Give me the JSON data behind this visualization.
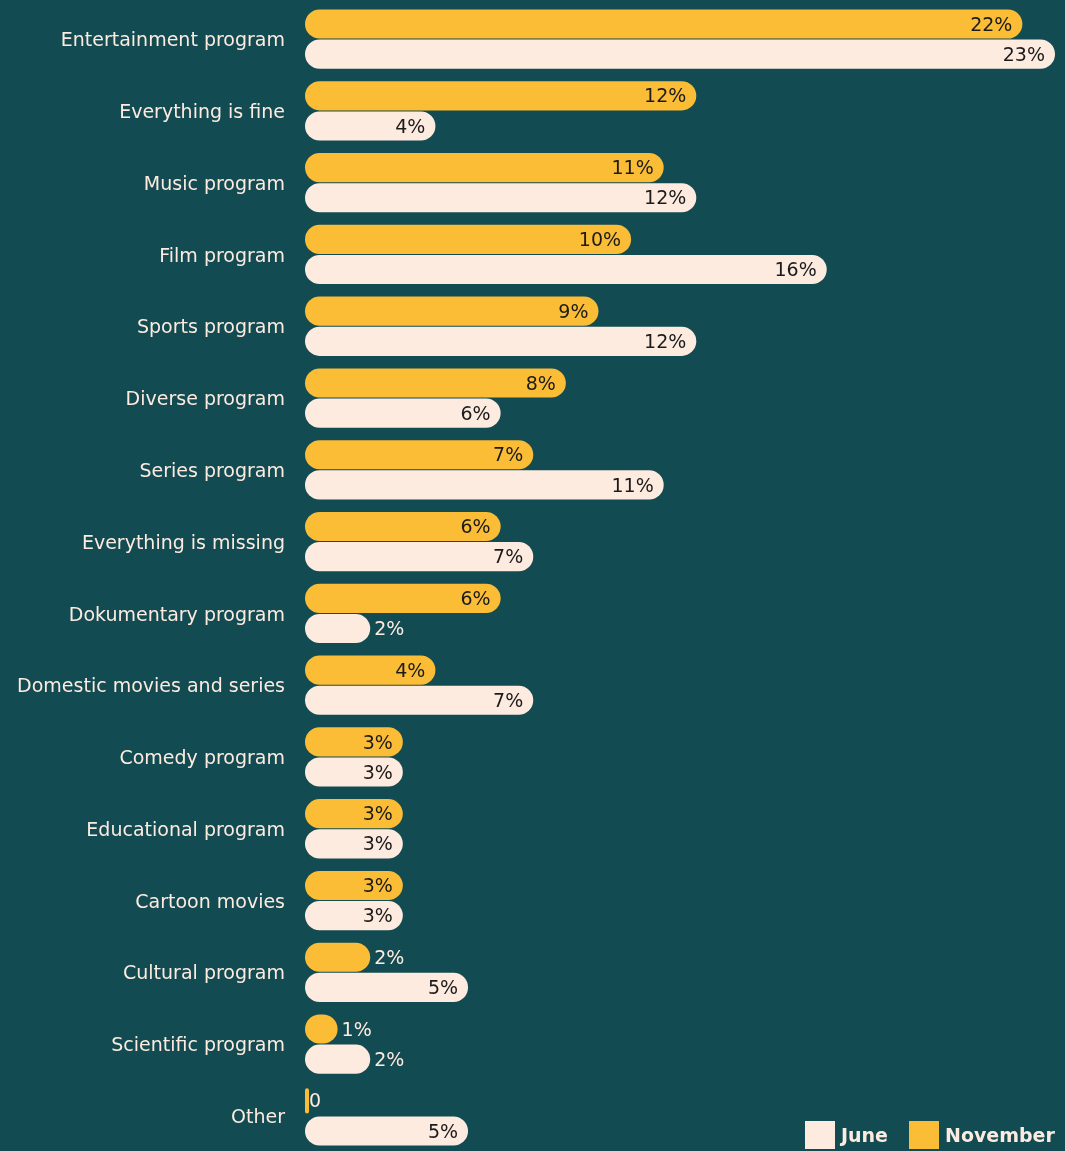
{
  "chart_data": {
    "type": "bar",
    "orientation": "horizontal",
    "categories": [
      "Entertainment program",
      "Everything is fine",
      "Music program",
      "Film program",
      "Sports program",
      "Diverse program",
      "Series program",
      "Everything is missing",
      "Dokumentary program",
      "Domestic movies and series",
      "Comedy program",
      "Educational program",
      "Cartoon movies",
      "Cultural program",
      "Scientific program",
      "Other"
    ],
    "series": [
      {
        "name": "November",
        "color": "#fbbd35",
        "values": [
          22,
          12,
          11,
          10,
          9,
          8,
          7,
          6,
          6,
          4,
          3,
          3,
          3,
          2,
          1,
          0
        ],
        "value_labels": [
          "22%",
          "12%",
          "11%",
          "10%",
          "9%",
          "8%",
          "7%",
          "6%",
          "6%",
          "4%",
          "3%",
          "3%",
          "3%",
          "2%",
          "1%",
          "0"
        ]
      },
      {
        "name": "June",
        "color": "#fdebe0",
        "values": [
          23,
          4,
          12,
          16,
          12,
          6,
          11,
          7,
          2,
          7,
          3,
          3,
          3,
          5,
          2,
          5
        ],
        "value_labels": [
          "23%",
          "4%",
          "12%",
          "16%",
          "12%",
          "6%",
          "11%",
          "7%",
          "2%",
          "7%",
          "3%",
          "3%",
          "3%",
          "5%",
          "2%",
          "5%"
        ]
      }
    ],
    "legend": "bottom right"
  }
}
